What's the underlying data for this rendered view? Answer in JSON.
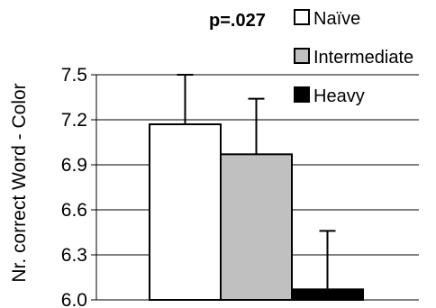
{
  "chart_data": {
    "type": "bar",
    "title": "",
    "xlabel": "",
    "ylabel": "Nr. correct Word - Color",
    "ylim": [
      6.0,
      7.5
    ],
    "yticks": [
      "6.0",
      "6.3",
      "6.6",
      "6.9",
      "7.2",
      "7.5"
    ],
    "grid": true,
    "legend_position": "top-right",
    "annotation": "p=.027",
    "series": [
      {
        "name": "Naïve",
        "value": 7.17,
        "error": 0.33,
        "color": "#ffffff"
      },
      {
        "name": "Intermediate",
        "value": 6.97,
        "error": 0.37,
        "color": "#c0c0c0"
      },
      {
        "name": "Heavy",
        "value": 6.07,
        "error": 0.39,
        "color": "#000000"
      }
    ]
  }
}
